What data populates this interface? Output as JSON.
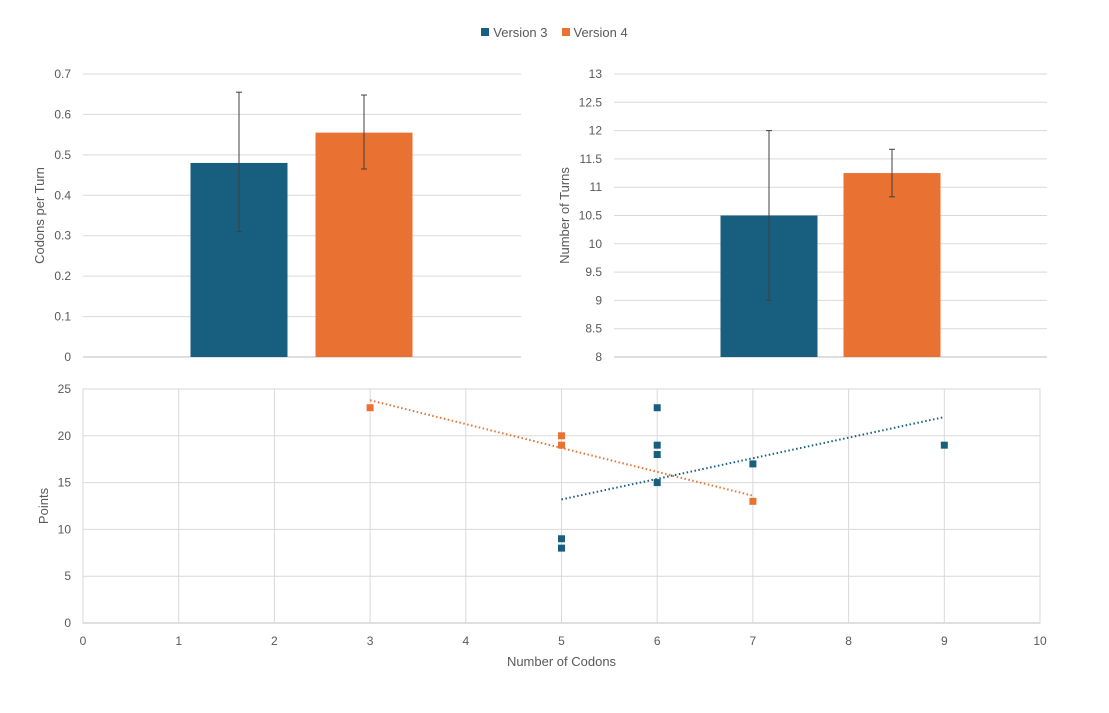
{
  "legend": {
    "items": [
      {
        "label": "Version 3",
        "color": "#185E7E"
      },
      {
        "label": "Version 4",
        "color": "#E97132"
      }
    ],
    "placement": "top-center"
  },
  "chart_data": [
    {
      "type": "bar",
      "ylabel": "Codons per Turn",
      "ylim": [
        0,
        0.7
      ],
      "ytick_step": 0.1,
      "grid": true,
      "series": [
        {
          "name": "Version 3",
          "color": "#185E7E",
          "value": 0.48,
          "error": [
            0.31,
            0.655
          ]
        },
        {
          "name": "Version 4",
          "color": "#E97132",
          "value": 0.555,
          "error": [
            0.465,
            0.648
          ]
        }
      ]
    },
    {
      "type": "bar",
      "ylabel": "Number of Turns",
      "ylim": [
        8,
        13
      ],
      "ytick_step": 0.5,
      "grid": true,
      "series": [
        {
          "name": "Version 3",
          "color": "#185E7E",
          "value": 10.5,
          "error": [
            9.0,
            12.0
          ]
        },
        {
          "name": "Version 4",
          "color": "#E97132",
          "value": 11.25,
          "error": [
            10.83,
            11.67
          ]
        }
      ]
    },
    {
      "type": "scatter",
      "xlabel": "Number of Codons",
      "ylabel": "Points",
      "xlim": [
        0,
        10
      ],
      "ylim": [
        0,
        25
      ],
      "xtick_step": 1,
      "ytick_step": 5,
      "grid": true,
      "series": [
        {
          "name": "Version 3",
          "color": "#185E7E",
          "points": [
            [
              5,
              9
            ],
            [
              5,
              8
            ],
            [
              6,
              23
            ],
            [
              6,
              19
            ],
            [
              6,
              18
            ],
            [
              6,
              15
            ],
            [
              7,
              17
            ],
            [
              9,
              19
            ]
          ],
          "trendline": [
            [
              5,
              13.2
            ],
            [
              9,
              22.0
            ]
          ]
        },
        {
          "name": "Version 4",
          "color": "#E97132",
          "points": [
            [
              3,
              23
            ],
            [
              5,
              20
            ],
            [
              5,
              19
            ],
            [
              7,
              13
            ]
          ],
          "trendline": [
            [
              3,
              23.8
            ],
            [
              7,
              13.6
            ]
          ]
        }
      ]
    }
  ]
}
